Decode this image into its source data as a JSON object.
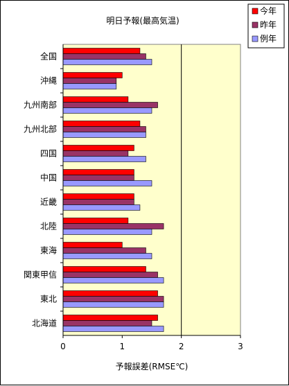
{
  "chart_data": {
    "type": "bar",
    "orientation": "horizontal",
    "title": "明日予報(最高気温)",
    "xlabel": "予報誤差(RMSE℃)",
    "ylabel": "",
    "xlim": [
      0,
      3
    ],
    "x_ticks": [
      "0",
      "1",
      "2",
      "3"
    ],
    "grid": "vertical gridline at 2",
    "legend_position": "top-right",
    "plot_background": "#ffffcc",
    "categories": [
      "全国",
      "沖縄",
      "九州南部",
      "九州北部",
      "四国",
      "中国",
      "近畿",
      "北陸",
      "東海",
      "関東甲信",
      "東北",
      "北海道"
    ],
    "series": [
      {
        "name": "今年",
        "color": "#ff0000",
        "values": [
          1.3,
          1.0,
          1.1,
          1.3,
          1.2,
          1.2,
          1.2,
          1.1,
          1.0,
          1.4,
          1.6,
          1.6
        ]
      },
      {
        "name": "昨年",
        "color": "#993366",
        "values": [
          1.4,
          0.9,
          1.6,
          1.4,
          1.1,
          1.2,
          1.2,
          1.7,
          1.4,
          1.6,
          1.7,
          1.5
        ]
      },
      {
        "name": "例年",
        "color": "#9999ff",
        "values": [
          1.5,
          0.9,
          1.5,
          1.4,
          1.4,
          1.5,
          1.3,
          1.5,
          1.5,
          1.7,
          1.7,
          1.7
        ]
      }
    ]
  }
}
